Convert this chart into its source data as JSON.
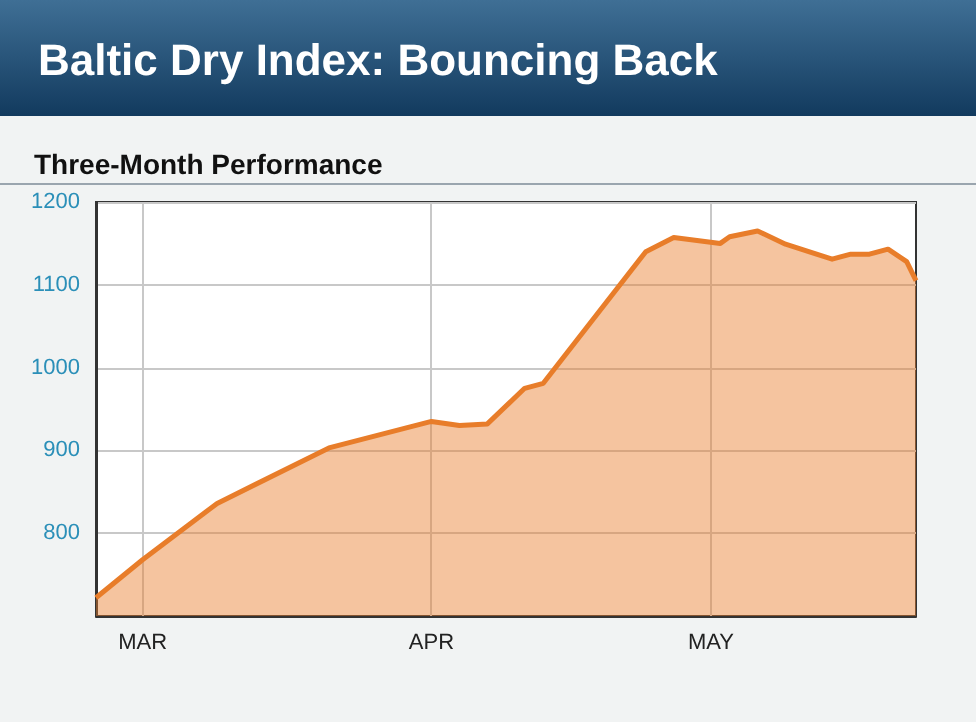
{
  "chart_data": {
    "type": "area",
    "title": "Baltic Dry Index: Bouncing Back",
    "subtitle": "Three-Month Performance",
    "x": [
      "--02-24",
      "--03-01",
      "--03-09",
      "--03-21",
      "--04-01",
      "--04-04",
      "--04-07",
      "--04-11",
      "--04-13",
      "--04-24",
      "--04-27",
      "--05-02",
      "--05-03",
      "--05-06",
      "--05-09",
      "--05-14",
      "--05-16",
      "--05-18",
      "--05-20",
      "--05-22",
      "--05-23"
    ],
    "series": [
      {
        "color": "#e87d2a",
        "values": [
          722,
          768,
          836,
          903,
          935,
          930,
          932,
          975,
          981,
          1140,
          1157,
          1150,
          1158,
          1165,
          1149,
          1131,
          1137,
          1137,
          1143,
          1128,
          1105
        ]
      }
    ],
    "xlim": [
      "--02-24",
      "--05-23"
    ],
    "xticks": [
      {
        "value": "--03-01",
        "label": "MAR"
      },
      {
        "value": "--04-01",
        "label": "APR"
      },
      {
        "value": "--05-01",
        "label": "MAY"
      }
    ],
    "ylim": [
      700,
      1200
    ],
    "yticks": [
      800,
      900,
      1000,
      1100,
      1200
    ],
    "grid": true,
    "marker": "none",
    "line_style": "solid"
  }
}
